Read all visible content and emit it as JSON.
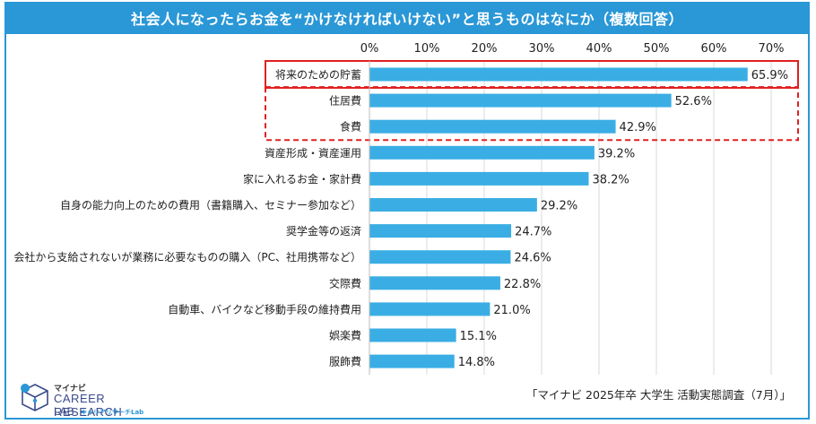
{
  "title": "社会人になったらお金を“かけなければいけない”と思うものはなにか（複数回答）",
  "source": "「マイナビ 2025年卒 大学生 活動実態調査（7月）」",
  "logo": {
    "top": "マイナビ",
    "main": "CAREER RESEARCH",
    "lab": "LAB",
    "sub": "キャリアリサーチLab"
  },
  "colors": {
    "bar": "#3aaee4",
    "frame": "#2a97d6",
    "highlight": "#e02020",
    "grid": "#d8d8d8"
  },
  "chart_data": {
    "type": "bar",
    "orientation": "horizontal",
    "title": "社会人になったらお金を“かけなければいけない”と思うものはなにか（複数回答）",
    "xlim": [
      0,
      70
    ],
    "ticks": [
      0,
      10,
      20,
      30,
      40,
      50,
      60,
      70
    ],
    "tick_labels": [
      "0%",
      "10%",
      "20%",
      "30%",
      "40%",
      "50%",
      "60%",
      "70%"
    ],
    "categories": [
      "将来のための貯蓄",
      "住居費",
      "食費",
      "資産形成・資産運用",
      "家に入れるお金・家計費",
      "自身の能力向上のための費用（書籍購入、セミナー参加など）",
      "奨学金等の返済",
      "会社から支給されないが業務に必要なものの購入（PC、社用携帯など）",
      "交際費",
      "自動車、バイクなど移動手段の維持費用",
      "娯楽費",
      "服飾費"
    ],
    "values": [
      65.9,
      52.6,
      42.9,
      39.2,
      38.2,
      29.2,
      24.7,
      24.6,
      22.8,
      21.0,
      15.1,
      14.8
    ],
    "value_labels": [
      "65.9%",
      "52.6%",
      "42.9%",
      "39.2%",
      "38.2%",
      "29.2%",
      "24.7%",
      "24.6%",
      "22.8%",
      "21.0%",
      "15.1%",
      "14.8%"
    ],
    "highlight_solid": [
      0
    ],
    "highlight_dashed": [
      1,
      2
    ]
  }
}
